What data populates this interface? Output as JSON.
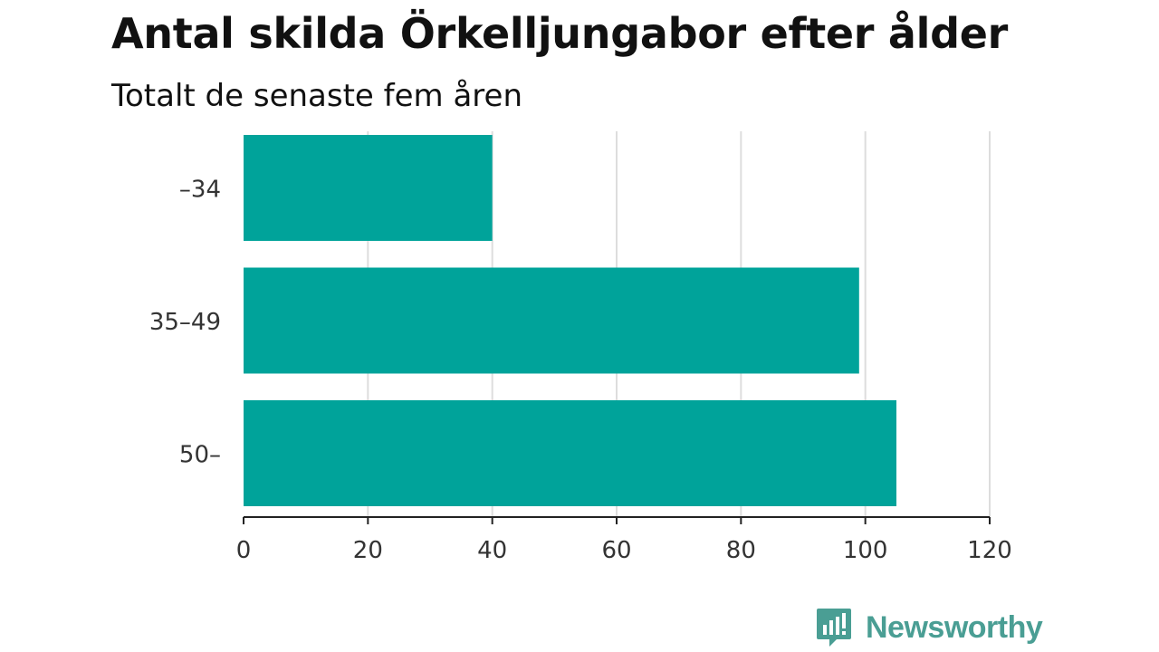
{
  "header": {
    "title": "Antal skilda Örkelljungabor efter ålder",
    "subtitle": "Totalt de senaste fem åren"
  },
  "brand": {
    "name": "Newsworthy",
    "icon": "newsworthy-logo-icon",
    "color": "#4a9e94"
  },
  "chart_data": {
    "type": "bar",
    "orientation": "horizontal",
    "title": "Antal skilda Örkelljungabor efter ålder",
    "subtitle": "Totalt de senaste fem åren",
    "categories": [
      "–34",
      "35–49",
      "50–"
    ],
    "values": [
      40,
      99,
      105
    ],
    "xlim": [
      0,
      120
    ],
    "xticks": [
      0,
      20,
      40,
      60,
      80,
      100,
      120
    ],
    "grid": true,
    "bar_color": "#00a39a",
    "grid_color": "#dddddd",
    "axis_color": "#222222"
  }
}
